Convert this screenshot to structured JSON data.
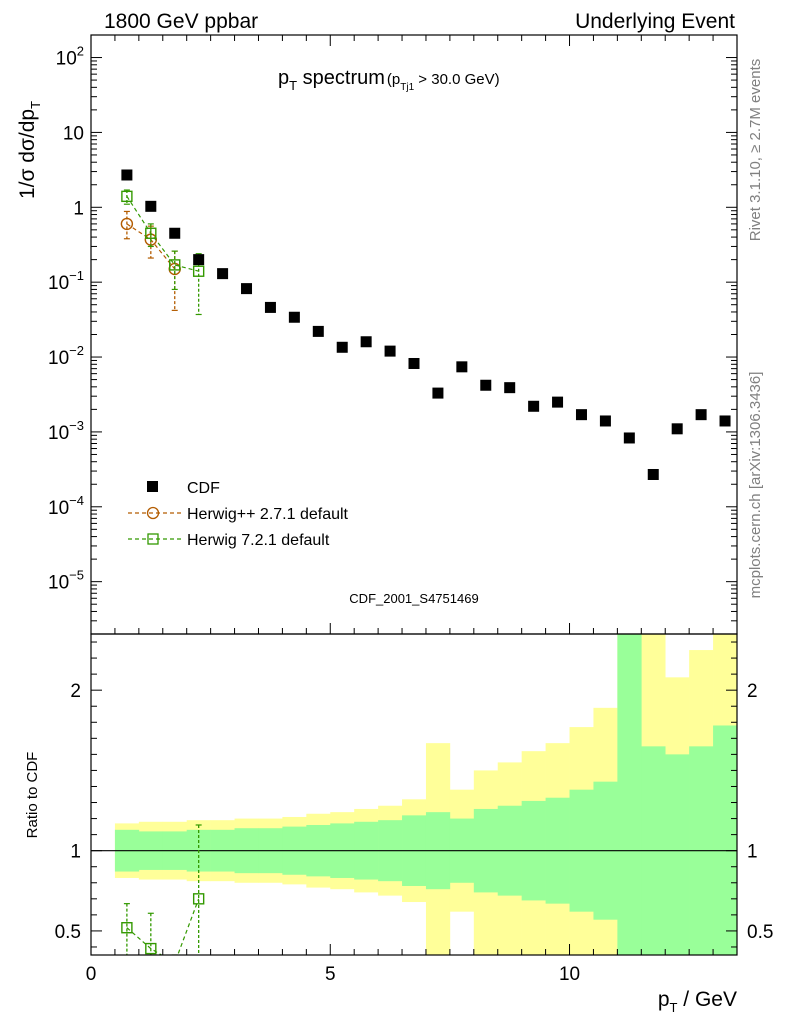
{
  "header": {
    "left": "1800 GeV ppbar",
    "right": "Underlying Event"
  },
  "side": {
    "rivet": "Rivet 3.1.10, ≥ 2.7M events",
    "mcplots": "mcplots.cern.ch [arXiv:1306.3436]"
  },
  "watermark": "CDF_2001_S4751469",
  "upper": {
    "ylabel_main": "1/σ dσ/dp",
    "ylabel_sub": "T",
    "title_main": "p",
    "title_sub": "T",
    "title_rest": " spectrum",
    "cut_open": "(p",
    "cut_sub": "Tj1",
    "cut_rest": " > 30.0 GeV)"
  },
  "legend": {
    "cdf": "CDF",
    "hpp": "Herwig++ 2.7.1 default",
    "h7": "Herwig 7.2.1 default"
  },
  "lower": {
    "ylabel": "Ratio to CDF"
  },
  "xaxis": {
    "label_main": "p",
    "label_sub": "T",
    "label_rest": " / GeV"
  },
  "colors": {
    "cdf": "#000000",
    "herwigpp": "#b35c00",
    "herwig7": "#339900",
    "band_inner": "#99ff99",
    "band_outer": "#ffff99"
  },
  "chart_data": {
    "type": "scatter",
    "upper": {
      "log_y": true,
      "xlim": [
        0,
        13.5
      ],
      "ylim": [
        2e-06,
        200
      ],
      "yticks": [
        1e-05,
        0.0001,
        0.001,
        0.01,
        0.1,
        1,
        10,
        100
      ],
      "ytick_labels": [
        {
          "base": "10",
          "exp": "−5"
        },
        {
          "base": "10",
          "exp": "−4"
        },
        {
          "base": "10",
          "exp": "−3"
        },
        {
          "base": "10",
          "exp": "−2"
        },
        {
          "base": "10",
          "exp": "−1"
        },
        {
          "base": "1",
          "exp": ""
        },
        {
          "base": "10",
          "exp": ""
        },
        {
          "base": "10",
          "exp": "2"
        }
      ],
      "series": [
        {
          "name": "CDF",
          "marker": "filled-square",
          "x": [
            0.75,
            1.25,
            1.75,
            2.25,
            2.75,
            3.25,
            3.75,
            4.25,
            4.75,
            5.25,
            5.75,
            6.25,
            6.75,
            7.25,
            7.75,
            8.25,
            8.75,
            9.25,
            9.75,
            10.25,
            10.75,
            11.25,
            11.75,
            12.25,
            12.75,
            13.25
          ],
          "y": [
            2.7,
            1.03,
            0.45,
            0.2,
            0.13,
            0.082,
            0.046,
            0.034,
            0.022,
            0.0135,
            0.016,
            0.012,
            0.0082,
            0.0033,
            0.0074,
            0.0042,
            0.0039,
            0.0022,
            0.0025,
            0.0017,
            0.0014,
            0.00083,
            0.00027,
            0.0011,
            0.0017,
            0.0014
          ]
        },
        {
          "name": "Herwig++ 2.7.1 default",
          "marker": "open-circle",
          "x": [
            0.75,
            1.25,
            1.75
          ],
          "y": [
            0.6,
            0.37,
            0.15
          ],
          "ylo": [
            0.38,
            0.21,
            0.042
          ],
          "yhi": [
            0.88,
            0.56,
            0.26
          ]
        },
        {
          "name": "Herwig 7.2.1 default",
          "marker": "open-square",
          "x": [
            0.75,
            1.25,
            1.75,
            2.25
          ],
          "y": [
            1.4,
            0.45,
            0.17,
            0.14
          ],
          "ylo": [
            1.1,
            0.3,
            0.08,
            0.037
          ],
          "yhi": [
            1.7,
            0.6,
            0.26,
            0.24
          ]
        }
      ]
    },
    "lower": {
      "xlim": [
        0,
        13.5
      ],
      "ylim": [
        0.35,
        2.35
      ],
      "yticks": [
        0.5,
        1,
        2
      ],
      "ytick_labels": [
        "0.5",
        "1",
        "2"
      ],
      "xticks": [
        0,
        5,
        10
      ],
      "xtick_labels": [
        "0",
        "5",
        "10"
      ],
      "bands": {
        "bin_edges": [
          0.5,
          1.0,
          1.5,
          2.0,
          2.5,
          3.0,
          3.5,
          4.0,
          4.5,
          5.0,
          5.5,
          6.0,
          6.5,
          7.0,
          7.5,
          8.0,
          8.5,
          9.0,
          9.5,
          10.0,
          10.5,
          11.0,
          11.5,
          12.0,
          12.5,
          13.0,
          13.5
        ],
        "inner_lo": [
          0.87,
          0.88,
          0.88,
          0.87,
          0.87,
          0.86,
          0.86,
          0.85,
          0.84,
          0.83,
          0.82,
          0.81,
          0.78,
          0.76,
          0.8,
          0.74,
          0.72,
          0.69,
          0.67,
          0.62,
          0.57,
          0.25,
          0.25,
          0.25,
          0.25,
          0.25
        ],
        "inner_hi": [
          1.13,
          1.12,
          1.12,
          1.13,
          1.13,
          1.14,
          1.14,
          1.15,
          1.16,
          1.17,
          1.18,
          1.19,
          1.22,
          1.24,
          1.2,
          1.26,
          1.28,
          1.31,
          1.33,
          1.38,
          1.43,
          2.5,
          1.65,
          1.6,
          1.65,
          1.78
        ],
        "outer_lo": [
          0.83,
          0.82,
          0.82,
          0.81,
          0.81,
          0.8,
          0.8,
          0.79,
          0.77,
          0.76,
          0.74,
          0.72,
          0.68,
          0.3,
          0.62,
          0.3,
          0.3,
          0.3,
          0.3,
          0.3,
          0.3,
          0.25,
          0.25,
          0.25,
          0.3,
          0.25
        ],
        "outer_hi": [
          1.17,
          1.18,
          1.18,
          1.19,
          1.19,
          1.2,
          1.2,
          1.21,
          1.23,
          1.24,
          1.26,
          1.28,
          1.32,
          1.67,
          1.38,
          1.5,
          1.55,
          1.62,
          1.67,
          1.77,
          1.89,
          2.35,
          2.35,
          2.08,
          2.25,
          2.35
        ]
      },
      "series": [
        {
          "name": "Herwig 7.2.1 default",
          "marker": "open-square",
          "x": [
            0.75,
            1.25,
            1.75,
            2.25
          ],
          "y": [
            0.52,
            0.39,
            0.3,
            0.7
          ],
          "ylo": [
            0.35,
            0.35,
            0.35,
            0.35
          ],
          "yhi": [
            0.67,
            0.61,
            0.35,
            1.16
          ]
        }
      ]
    }
  }
}
